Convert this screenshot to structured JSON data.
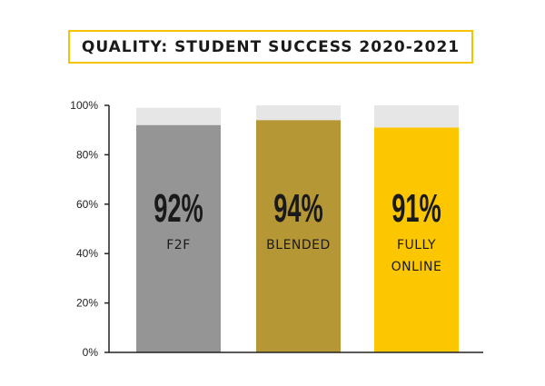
{
  "title": "QUALITY: STUDENT SUCCESS 2020-2021",
  "colors": {
    "title_border": "#f4c400",
    "bar_top": "#e6e6e6",
    "axis": "#222222"
  },
  "chart_data": {
    "type": "bar",
    "stacked": true,
    "categories": [
      "F2F",
      "BLENDED",
      "FULLY ONLINE"
    ],
    "category_lines": [
      [
        "F2F"
      ],
      [
        "BLENDED"
      ],
      [
        "FULLY",
        "ONLINE"
      ]
    ],
    "values": [
      92,
      94,
      91
    ],
    "value_labels": [
      "92%",
      "94%",
      "91%"
    ],
    "bar_total": [
      99,
      100,
      100
    ],
    "bar_colors": [
      "#959595",
      "#b69736",
      "#fcc600"
    ],
    "ylim": [
      0,
      100
    ],
    "yticks": [
      0,
      20,
      40,
      60,
      80,
      100
    ],
    "ytick_labels": [
      "0%",
      "20%",
      "40%",
      "60%",
      "80%",
      "100%"
    ],
    "xlabel": "",
    "ylabel": "",
    "legend": "none",
    "grid": false
  }
}
